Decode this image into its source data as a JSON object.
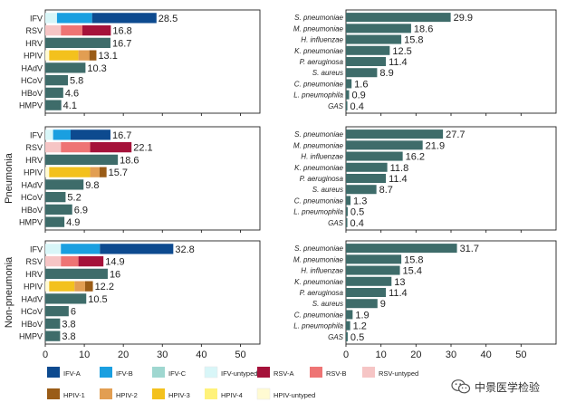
{
  "colors": {
    "frame": "#222222",
    "bacteria": "#3e6c6a",
    "IFV-A": "#0d4a8f",
    "IFV-B": "#1a9fe0",
    "IFV-C": "#9fd7d0",
    "IFV-untyped": "#d8f6f8",
    "RSV-A": "#a5123a",
    "RSV-B": "#ee7474",
    "RSV-untyped": "#f6c5c5",
    "HPIV-1": "#9a5c17",
    "HPIV-2": "#e29e52",
    "HPIV-3": "#f3c11d",
    "HPIV-4": "#fff27a",
    "HPIV-untyped": "#fffad2",
    "HRV": "#3e6c6a",
    "HAdV": "#3e6c6a",
    "HCoV": "#3e6c6a",
    "HBoV": "#3e6c6a",
    "HMPV": "#3e6c6a"
  },
  "chart_data": [
    {
      "type": "bar",
      "orientation": "horizontal",
      "stacked": true,
      "panel": "viruses",
      "row_label": "",
      "categories": [
        "IFV",
        "RSV",
        "HRV",
        "HPIV",
        "HAdV",
        "HCoV",
        "HBoV",
        "HMPV"
      ],
      "totals": [
        28.5,
        16.8,
        16.7,
        13.1,
        10.3,
        5.8,
        4.6,
        4.1
      ],
      "total_labels": [
        "28.5",
        "16.8",
        "16.7",
        "13.1",
        "10.3",
        "5.8",
        "4.6",
        "4.1"
      ],
      "segments": {
        "IFV": [
          [
            "IFV-untyped",
            3.0
          ],
          [
            "IFV-B",
            9.0
          ],
          [
            "IFV-A",
            16.5
          ]
        ],
        "RSV": [
          [
            "RSV-untyped",
            4.0
          ],
          [
            "RSV-B",
            5.5
          ],
          [
            "RSV-A",
            7.3
          ]
        ],
        "HRV": [
          [
            "HRV",
            16.7
          ]
        ],
        "HPIV": [
          [
            "HPIV-untyped",
            1.0
          ],
          [
            "HPIV-3",
            7.5
          ],
          [
            "HPIV-2",
            2.8
          ],
          [
            "HPIV-1",
            1.8
          ]
        ],
        "HAdV": [
          [
            "HAdV",
            10.3
          ]
        ],
        "HCoV": [
          [
            "HCoV",
            5.8
          ]
        ],
        "HBoV": [
          [
            "HBoV",
            4.6
          ]
        ],
        "HMPV": [
          [
            "HMPV",
            4.1
          ]
        ]
      },
      "xlim": [
        0,
        55
      ],
      "xticks": [
        0,
        10,
        20,
        30,
        40,
        50
      ],
      "show_xticks": false
    },
    {
      "type": "bar",
      "orientation": "horizontal",
      "panel": "bacteria",
      "row_label": "",
      "categories": [
        "S. pneumoniae",
        "M. pneumoniae",
        "H. influenzae",
        "K. pneumoniae",
        "P. aeruginosa",
        "S. aureus",
        "C. pneumoniae",
        "L. pneumophila",
        "GAS"
      ],
      "values": [
        29.9,
        18.6,
        15.8,
        12.5,
        11.4,
        8.9,
        1.6,
        0.9,
        0.4
      ],
      "value_labels": [
        "29.9",
        "18.6",
        "15.8",
        "12.5",
        "11.4",
        "8.9",
        "1.6",
        "0.9",
        "0.4"
      ],
      "xlim": [
        0,
        60
      ],
      "xticks": [
        0,
        10,
        20,
        30,
        40,
        50
      ],
      "show_xticks": false
    },
    {
      "type": "bar",
      "orientation": "horizontal",
      "stacked": true,
      "panel": "viruses",
      "row_label": "Pneumonia",
      "categories": [
        "IFV",
        "RSV",
        "HRV",
        "HPIV",
        "HAdV",
        "HCoV",
        "HBoV",
        "HMPV"
      ],
      "totals": [
        16.7,
        22.1,
        18.6,
        15.7,
        9.8,
        5.2,
        6.9,
        4.9
      ],
      "total_labels": [
        "16.7",
        "22.1",
        "18.6",
        "15.7",
        "9.8",
        "5.2",
        "6.9",
        "4.9"
      ],
      "segments": {
        "IFV": [
          [
            "IFV-untyped",
            2.0
          ],
          [
            "IFV-B",
            4.5
          ],
          [
            "IFV-A",
            10.2
          ]
        ],
        "RSV": [
          [
            "RSV-untyped",
            4.0
          ],
          [
            "RSV-B",
            7.5
          ],
          [
            "RSV-A",
            10.6
          ]
        ],
        "HRV": [
          [
            "HRV",
            18.6
          ]
        ],
        "HPIV": [
          [
            "HPIV-untyped",
            1.0
          ],
          [
            "HPIV-3",
            10.5
          ],
          [
            "HPIV-2",
            2.4
          ],
          [
            "HPIV-1",
            1.8
          ]
        ],
        "HAdV": [
          [
            "HAdV",
            9.8
          ]
        ],
        "HCoV": [
          [
            "HCoV",
            5.2
          ]
        ],
        "HBoV": [
          [
            "HBoV",
            6.9
          ]
        ],
        "HMPV": [
          [
            "HMPV",
            4.9
          ]
        ]
      },
      "xlim": [
        0,
        55
      ],
      "xticks": [
        0,
        10,
        20,
        30,
        40,
        50
      ],
      "show_xticks": false
    },
    {
      "type": "bar",
      "orientation": "horizontal",
      "panel": "bacteria",
      "row_label": "",
      "categories": [
        "S. pneumoniae",
        "M. pneumoniae",
        "H. influenzae",
        "K. pneumoniae",
        "P. aeruginosa",
        "S. aureus",
        "C. pneumoniae",
        "L. pneumophila",
        "GAS"
      ],
      "values": [
        27.7,
        21.9,
        16.2,
        11.8,
        11.4,
        8.7,
        1.3,
        0.5,
        0.4
      ],
      "value_labels": [
        "27.7",
        "21.9",
        "16.2",
        "11.8",
        "11.4",
        "8.7",
        "1.3",
        "0.5",
        "0.4"
      ],
      "xlim": [
        0,
        60
      ],
      "xticks": [
        0,
        10,
        20,
        30,
        40,
        50
      ],
      "show_xticks": false
    },
    {
      "type": "bar",
      "orientation": "horizontal",
      "stacked": true,
      "panel": "viruses",
      "row_label": "Non-pneumonia",
      "categories": [
        "IFV",
        "RSV",
        "HRV",
        "HPIV",
        "HAdV",
        "HCoV",
        "HBoV",
        "HMPV"
      ],
      "totals": [
        32.8,
        14.9,
        16,
        12.2,
        10.5,
        6,
        3.8,
        3.8
      ],
      "total_labels": [
        "32.8",
        "14.9",
        "16",
        "12.2",
        "10.5",
        "6",
        "3.8",
        "3.8"
      ],
      "segments": {
        "IFV": [
          [
            "IFV-untyped",
            4.0
          ],
          [
            "IFV-B",
            10.0
          ],
          [
            "IFV-A",
            18.8
          ]
        ],
        "RSV": [
          [
            "RSV-untyped",
            4.0
          ],
          [
            "RSV-B",
            4.5
          ],
          [
            "RSV-A",
            6.4
          ]
        ],
        "HRV": [
          [
            "HRV",
            16
          ]
        ],
        "HPIV": [
          [
            "HPIV-untyped",
            1.0
          ],
          [
            "HPIV-3",
            6.5
          ],
          [
            "HPIV-2",
            2.7
          ],
          [
            "HPIV-1",
            2.0
          ]
        ],
        "HAdV": [
          [
            "HAdV",
            10.5
          ]
        ],
        "HCoV": [
          [
            "HCoV",
            6
          ]
        ],
        "HBoV": [
          [
            "HBoV",
            3.8
          ]
        ],
        "HMPV": [
          [
            "HMPV",
            3.8
          ]
        ]
      },
      "xlim": [
        0,
        55
      ],
      "xticks": [
        0,
        10,
        20,
        30,
        40,
        50
      ],
      "show_xticks": true
    },
    {
      "type": "bar",
      "orientation": "horizontal",
      "panel": "bacteria",
      "row_label": "",
      "categories": [
        "S. pneumoniae",
        "M. pneumoniae",
        "H. influenzae",
        "K. pneumoniae",
        "P. aeruginosa",
        "S. aureus",
        "C. pneumoniae",
        "L. pneumophila",
        "GAS"
      ],
      "values": [
        31.7,
        15.8,
        15.4,
        13,
        11.4,
        9,
        1.9,
        1.2,
        0.5
      ],
      "value_labels": [
        "31.7",
        "15.8",
        "15.4",
        "13",
        "11.4",
        "9",
        "1.9",
        "1.2",
        "0.5"
      ],
      "xlim": [
        0,
        60
      ],
      "xticks": [
        0,
        10,
        20,
        30,
        40,
        50
      ],
      "show_xticks": true
    }
  ],
  "legend": {
    "row1": [
      {
        "key": "IFV-A",
        "label": "IFV-A"
      },
      {
        "key": "IFV-B",
        "label": "IFV-B"
      },
      {
        "key": "IFV-C",
        "label": "IFV-C"
      },
      {
        "key": "IFV-untyped",
        "label": "IFV-untyped"
      },
      {
        "key": "RSV-A",
        "label": "RSV-A"
      },
      {
        "key": "RSV-B",
        "label": "RSV-B"
      },
      {
        "key": "RSV-untyped",
        "label": "RSV-untyped"
      }
    ],
    "row2": [
      {
        "key": "HPIV-1",
        "label": "HPIV-1"
      },
      {
        "key": "HPIV-2",
        "label": "HPIV-2"
      },
      {
        "key": "HPIV-3",
        "label": "HPIV-3"
      },
      {
        "key": "HPIV-4",
        "label": "HPIV-4"
      },
      {
        "key": "HPIV-untyped",
        "label": "HPIV-untyped"
      }
    ]
  },
  "watermark": {
    "text": "中景医学检验",
    "icon": "wechat-icon"
  }
}
